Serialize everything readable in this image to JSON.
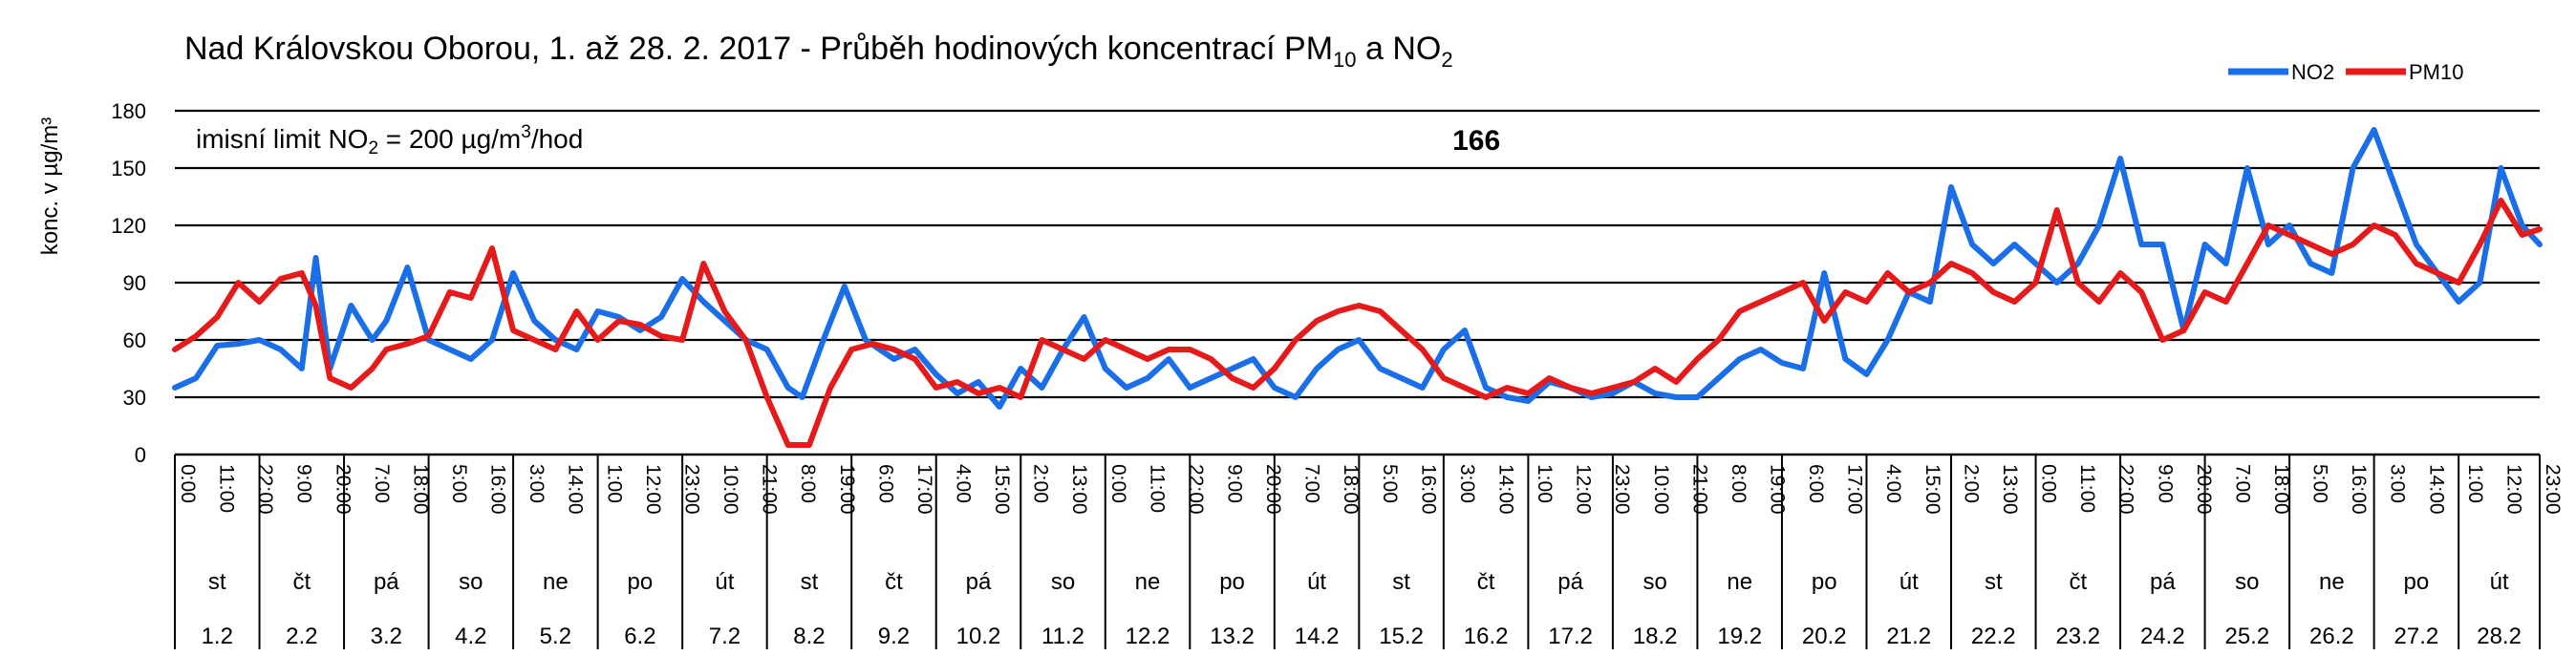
{
  "chart_data": {
    "type": "line",
    "title": {
      "prefix": "Nad Královskou Oborou, 1. až 28. 2. 2017 - Průběh hodinových koncentrací PM",
      "sub1": "10",
      "mid": " a NO",
      "sub2": "2"
    },
    "ylabel": "konc. v µg/m³",
    "ylim": [
      0,
      180
    ],
    "yticks": [
      0,
      30,
      60,
      90,
      120,
      150,
      180
    ],
    "grid": true,
    "legend_position": "top-right",
    "legend": [
      {
        "name": "NO2",
        "color": "#1a6fe8"
      },
      {
        "name": "PM10",
        "color": "#e51b1b"
      }
    ],
    "limit_note": {
      "prefix": "imisní limit NO",
      "sub": "2",
      "mid": " = 200 µg/m",
      "sup": "3",
      "suffix": "/hod"
    },
    "peak_annotation": {
      "text": "166",
      "x_hour": 372
    },
    "tick_labels": [
      "0:00",
      "11:00",
      "22:00",
      "9:00",
      "20:00",
      "7:00",
      "18:00",
      "5:00",
      "16:00",
      "3:00",
      "14:00",
      "1:00",
      "12:00",
      "23:00",
      "10:00",
      "21:00",
      "8:00",
      "19:00",
      "6:00",
      "17:00",
      "4:00",
      "15:00",
      "2:00",
      "13:00",
      "0:00",
      "11:00",
      "22:00",
      "9:00",
      "20:00",
      "7:00",
      "18:00",
      "5:00",
      "16:00",
      "3:00",
      "14:00",
      "1:00",
      "12:00",
      "23:00",
      "10:00",
      "21:00",
      "8:00",
      "19:00",
      "6:00",
      "17:00",
      "4:00",
      "15:00",
      "2:00",
      "13:00",
      "0:00",
      "11:00",
      "22:00",
      "9:00",
      "20:00",
      "7:00",
      "18:00",
      "5:00",
      "16:00",
      "3:00",
      "14:00",
      "1:00",
      "12:00",
      "23:00"
    ],
    "tick_step_hours": 11,
    "days": [
      {
        "weekday": "st",
        "date": "1.2"
      },
      {
        "weekday": "čt",
        "date": "2.2"
      },
      {
        "weekday": "pá",
        "date": "3.2"
      },
      {
        "weekday": "so",
        "date": "4.2"
      },
      {
        "weekday": "ne",
        "date": "5.2"
      },
      {
        "weekday": "po",
        "date": "6.2"
      },
      {
        "weekday": "út",
        "date": "7.2"
      },
      {
        "weekday": "st",
        "date": "8.2"
      },
      {
        "weekday": "čt",
        "date": "9.2"
      },
      {
        "weekday": "pá",
        "date": "10.2"
      },
      {
        "weekday": "so",
        "date": "11.2"
      },
      {
        "weekday": "ne",
        "date": "12.2"
      },
      {
        "weekday": "po",
        "date": "13.2"
      },
      {
        "weekday": "út",
        "date": "14.2"
      },
      {
        "weekday": "st",
        "date": "15.2"
      },
      {
        "weekday": "čt",
        "date": "16.2"
      },
      {
        "weekday": "pá",
        "date": "17.2"
      },
      {
        "weekday": "so",
        "date": "18.2"
      },
      {
        "weekday": "ne",
        "date": "19.2"
      },
      {
        "weekday": "po",
        "date": "20.2"
      },
      {
        "weekday": "út",
        "date": "21.2"
      },
      {
        "weekday": "st",
        "date": "22.2"
      },
      {
        "weekday": "čt",
        "date": "23.2"
      },
      {
        "weekday": "pá",
        "date": "24.2"
      },
      {
        "weekday": "so",
        "date": "25.2"
      },
      {
        "weekday": "ne",
        "date": "26.2"
      },
      {
        "weekday": "po",
        "date": "27.2"
      },
      {
        "weekday": "út",
        "date": "28.2"
      }
    ],
    "x_unit": "hour",
    "x_range": [
      0,
      671
    ],
    "series": [
      {
        "name": "NO2",
        "color": "#1a6fe8",
        "points": [
          [
            0,
            35
          ],
          [
            6,
            40
          ],
          [
            12,
            57
          ],
          [
            18,
            58
          ],
          [
            24,
            60
          ],
          [
            30,
            55
          ],
          [
            36,
            45
          ],
          [
            40,
            103
          ],
          [
            44,
            45
          ],
          [
            50,
            78
          ],
          [
            56,
            60
          ],
          [
            60,
            70
          ],
          [
            66,
            98
          ],
          [
            72,
            60
          ],
          [
            78,
            55
          ],
          [
            84,
            50
          ],
          [
            90,
            60
          ],
          [
            96,
            95
          ],
          [
            102,
            70
          ],
          [
            108,
            60
          ],
          [
            114,
            55
          ],
          [
            120,
            75
          ],
          [
            126,
            72
          ],
          [
            132,
            65
          ],
          [
            138,
            72
          ],
          [
            144,
            92
          ],
          [
            150,
            80
          ],
          [
            156,
            70
          ],
          [
            162,
            60
          ],
          [
            168,
            55
          ],
          [
            174,
            35
          ],
          [
            178,
            30
          ],
          [
            184,
            60
          ],
          [
            190,
            88
          ],
          [
            196,
            60
          ],
          [
            204,
            50
          ],
          [
            210,
            55
          ],
          [
            216,
            42
          ],
          [
            222,
            32
          ],
          [
            228,
            38
          ],
          [
            234,
            25
          ],
          [
            240,
            45
          ],
          [
            246,
            35
          ],
          [
            252,
            55
          ],
          [
            258,
            72
          ],
          [
            264,
            45
          ],
          [
            270,
            35
          ],
          [
            276,
            40
          ],
          [
            282,
            50
          ],
          [
            288,
            35
          ],
          [
            294,
            40
          ],
          [
            300,
            45
          ],
          [
            306,
            50
          ],
          [
            312,
            35
          ],
          [
            318,
            30
          ],
          [
            324,
            45
          ],
          [
            330,
            55
          ],
          [
            336,
            60
          ],
          [
            342,
            45
          ],
          [
            348,
            40
          ],
          [
            354,
            35
          ],
          [
            360,
            55
          ],
          [
            366,
            65
          ],
          [
            372,
            35
          ],
          [
            378,
            30
          ],
          [
            384,
            28
          ],
          [
            390,
            38
          ],
          [
            396,
            35
          ],
          [
            402,
            30
          ],
          [
            408,
            32
          ],
          [
            414,
            38
          ],
          [
            420,
            32
          ],
          [
            426,
            30
          ],
          [
            432,
            30
          ],
          [
            438,
            40
          ],
          [
            444,
            50
          ],
          [
            450,
            55
          ],
          [
            456,
            48
          ],
          [
            462,
            45
          ],
          [
            468,
            95
          ],
          [
            474,
            50
          ],
          [
            480,
            42
          ],
          [
            486,
            60
          ],
          [
            492,
            85
          ],
          [
            498,
            80
          ],
          [
            504,
            140
          ],
          [
            510,
            110
          ],
          [
            516,
            100
          ],
          [
            522,
            110
          ],
          [
            528,
            100
          ],
          [
            534,
            90
          ],
          [
            540,
            100
          ],
          [
            546,
            120
          ],
          [
            552,
            155
          ],
          [
            558,
            110
          ],
          [
            564,
            110
          ],
          [
            570,
            65
          ],
          [
            576,
            110
          ],
          [
            582,
            100
          ],
          [
            588,
            150
          ],
          [
            594,
            110
          ],
          [
            600,
            120
          ],
          [
            606,
            100
          ],
          [
            612,
            95
          ],
          [
            618,
            150
          ],
          [
            624,
            170
          ],
          [
            630,
            140
          ],
          [
            636,
            110
          ],
          [
            642,
            95
          ],
          [
            648,
            80
          ],
          [
            654,
            90
          ],
          [
            660,
            150
          ],
          [
            666,
            120
          ],
          [
            671,
            110
          ]
        ]
      },
      {
        "name": "PM10",
        "color": "#e51b1b",
        "points": [
          [
            0,
            55
          ],
          [
            6,
            62
          ],
          [
            12,
            72
          ],
          [
            18,
            90
          ],
          [
            24,
            80
          ],
          [
            30,
            92
          ],
          [
            36,
            95
          ],
          [
            40,
            78
          ],
          [
            44,
            40
          ],
          [
            50,
            35
          ],
          [
            56,
            45
          ],
          [
            60,
            55
          ],
          [
            66,
            58
          ],
          [
            72,
            62
          ],
          [
            78,
            85
          ],
          [
            84,
            82
          ],
          [
            90,
            108
          ],
          [
            96,
            65
          ],
          [
            102,
            60
          ],
          [
            108,
            55
          ],
          [
            114,
            75
          ],
          [
            120,
            60
          ],
          [
            126,
            70
          ],
          [
            132,
            68
          ],
          [
            138,
            62
          ],
          [
            144,
            60
          ],
          [
            150,
            100
          ],
          [
            156,
            75
          ],
          [
            162,
            60
          ],
          [
            168,
            30
          ],
          [
            174,
            5
          ],
          [
            180,
            5
          ],
          [
            186,
            35
          ],
          [
            192,
            55
          ],
          [
            198,
            58
          ],
          [
            204,
            55
          ],
          [
            210,
            50
          ],
          [
            216,
            35
          ],
          [
            222,
            38
          ],
          [
            228,
            32
          ],
          [
            234,
            35
          ],
          [
            240,
            30
          ],
          [
            246,
            60
          ],
          [
            252,
            55
          ],
          [
            258,
            50
          ],
          [
            264,
            60
          ],
          [
            270,
            55
          ],
          [
            276,
            50
          ],
          [
            282,
            55
          ],
          [
            288,
            55
          ],
          [
            294,
            50
          ],
          [
            300,
            40
          ],
          [
            306,
            35
          ],
          [
            312,
            45
          ],
          [
            318,
            60
          ],
          [
            324,
            70
          ],
          [
            330,
            75
          ],
          [
            336,
            78
          ],
          [
            342,
            75
          ],
          [
            348,
            65
          ],
          [
            354,
            55
          ],
          [
            360,
            40
          ],
          [
            366,
            35
          ],
          [
            372,
            30
          ],
          [
            378,
            35
          ],
          [
            384,
            32
          ],
          [
            390,
            40
          ],
          [
            396,
            35
          ],
          [
            402,
            32
          ],
          [
            408,
            35
          ],
          [
            414,
            38
          ],
          [
            420,
            45
          ],
          [
            426,
            38
          ],
          [
            432,
            50
          ],
          [
            438,
            60
          ],
          [
            444,
            75
          ],
          [
            450,
            80
          ],
          [
            456,
            85
          ],
          [
            462,
            90
          ],
          [
            468,
            70
          ],
          [
            474,
            85
          ],
          [
            480,
            80
          ],
          [
            486,
            95
          ],
          [
            492,
            85
          ],
          [
            498,
            90
          ],
          [
            504,
            100
          ],
          [
            510,
            95
          ],
          [
            516,
            85
          ],
          [
            522,
            80
          ],
          [
            528,
            90
          ],
          [
            534,
            128
          ],
          [
            540,
            90
          ],
          [
            546,
            80
          ],
          [
            552,
            95
          ],
          [
            558,
            85
          ],
          [
            564,
            60
          ],
          [
            570,
            65
          ],
          [
            576,
            85
          ],
          [
            582,
            80
          ],
          [
            588,
            100
          ],
          [
            594,
            120
          ],
          [
            600,
            115
          ],
          [
            606,
            110
          ],
          [
            612,
            105
          ],
          [
            618,
            110
          ],
          [
            624,
            120
          ],
          [
            630,
            115
          ],
          [
            636,
            100
          ],
          [
            642,
            95
          ],
          [
            648,
            90
          ],
          [
            654,
            110
          ],
          [
            660,
            133
          ],
          [
            666,
            115
          ],
          [
            671,
            118
          ]
        ]
      }
    ]
  }
}
